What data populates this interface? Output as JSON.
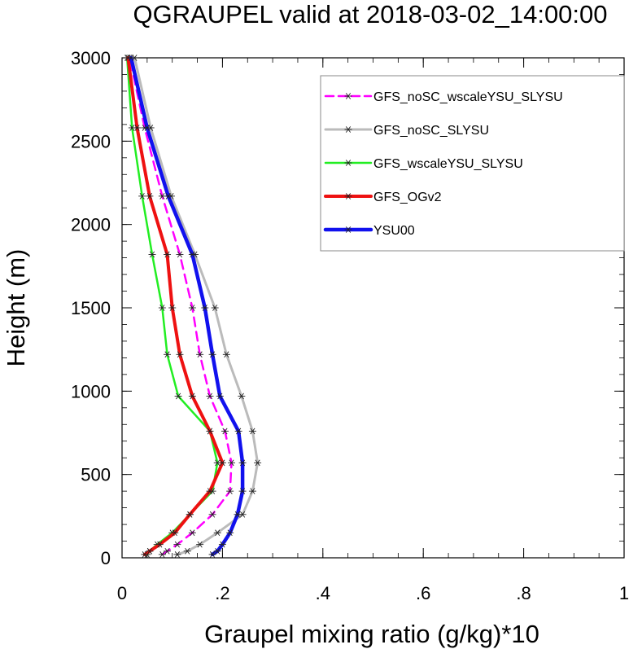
{
  "chart_data": {
    "type": "line",
    "title": "QGRAUPEL valid at 2018-03-02_14:00:00",
    "xlabel": "Graupel mixing ratio (g/kg)*10",
    "ylabel": "Height (m)",
    "xlim": [
      0,
      1
    ],
    "ylim": [
      0,
      3000
    ],
    "xticks": [
      0,
      0.2,
      0.4,
      0.6,
      0.8,
      1
    ],
    "xtick_labels": [
      "0",
      ".2",
      ".4",
      ".6",
      ".8",
      "1"
    ],
    "yticks": [
      0,
      500,
      1000,
      1500,
      2000,
      2500,
      3000
    ],
    "ytick_labels": [
      "0",
      "500",
      "1000",
      "1500",
      "2000",
      "2500",
      "3000"
    ],
    "grid": false,
    "legend_position": "top-right",
    "heights": [
      20,
      40,
      80,
      150,
      260,
      400,
      570,
      760,
      970,
      1220,
      1500,
      1820,
      2170,
      2580,
      3000
    ],
    "series": [
      {
        "name": "GFS_noSC_wscaleYSU_SLYSU",
        "color": "#ff00ff",
        "style": "dashed",
        "width": 2.5,
        "values": [
          0.08,
          0.09,
          0.11,
          0.14,
          0.18,
          0.215,
          0.218,
          0.205,
          0.175,
          0.155,
          0.14,
          0.115,
          0.08,
          0.045,
          0.015
        ]
      },
      {
        "name": "GFS_noSC_SLYSU",
        "color": "#bbbbbb",
        "style": "solid",
        "width": 3,
        "values": [
          0.11,
          0.13,
          0.155,
          0.19,
          0.24,
          0.26,
          0.27,
          0.26,
          0.238,
          0.208,
          0.185,
          0.145,
          0.098,
          0.057,
          0.025
        ]
      },
      {
        "name": "GFS_wscaleYSU_SLYSU",
        "color": "#22ee22",
        "style": "solid",
        "width": 2.5,
        "values": [
          0.05,
          0.055,
          0.07,
          0.1,
          0.135,
          0.18,
          0.19,
          0.175,
          0.112,
          0.09,
          0.08,
          0.06,
          0.04,
          0.02,
          0.01
        ]
      },
      {
        "name": "GFS_OGv2",
        "color": "#ee1111",
        "style": "solid",
        "width": 4,
        "values": [
          0.045,
          0.055,
          0.075,
          0.105,
          0.135,
          0.175,
          0.2,
          0.175,
          0.14,
          0.115,
          0.1,
          0.09,
          0.055,
          0.03,
          0.012
        ]
      },
      {
        "name": "YSU00",
        "color": "#1111ee",
        "style": "solid",
        "width": 4.5,
        "values": [
          0.18,
          0.19,
          0.2,
          0.215,
          0.23,
          0.24,
          0.24,
          0.232,
          0.195,
          0.18,
          0.165,
          0.14,
          0.092,
          0.05,
          0.018
        ]
      }
    ]
  }
}
